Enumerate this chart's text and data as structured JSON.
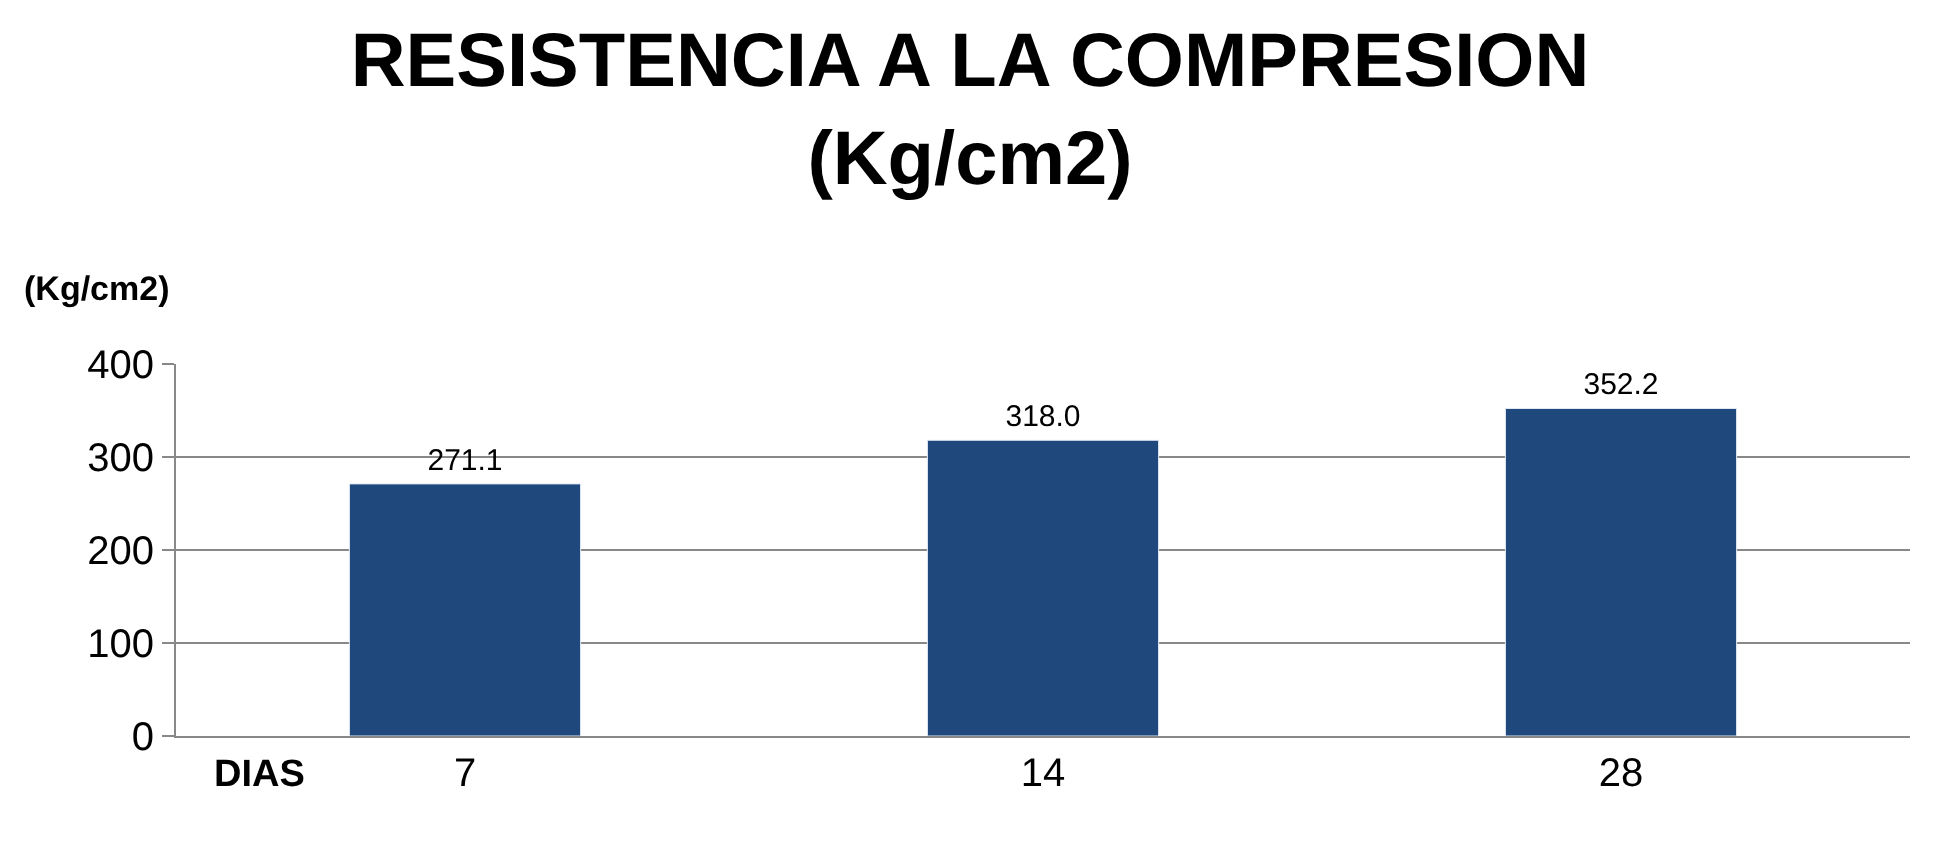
{
  "chart_data": {
    "type": "bar",
    "title": "RESISTENCIA A LA COMPRESION\n(Kg/cm2)",
    "ylabel": "(Kg/cm2)",
    "xlabel": "DIAS",
    "categories": [
      "7",
      "14",
      "28"
    ],
    "values": [
      271.1,
      318.0,
      352.2
    ],
    "value_labels": [
      "271.1",
      "318.0",
      "352.2"
    ],
    "color": "#1f497d",
    "ylim": [
      0,
      400
    ],
    "yticks": [
      0,
      100,
      200,
      300,
      400
    ],
    "grid": "y",
    "legend": false
  }
}
